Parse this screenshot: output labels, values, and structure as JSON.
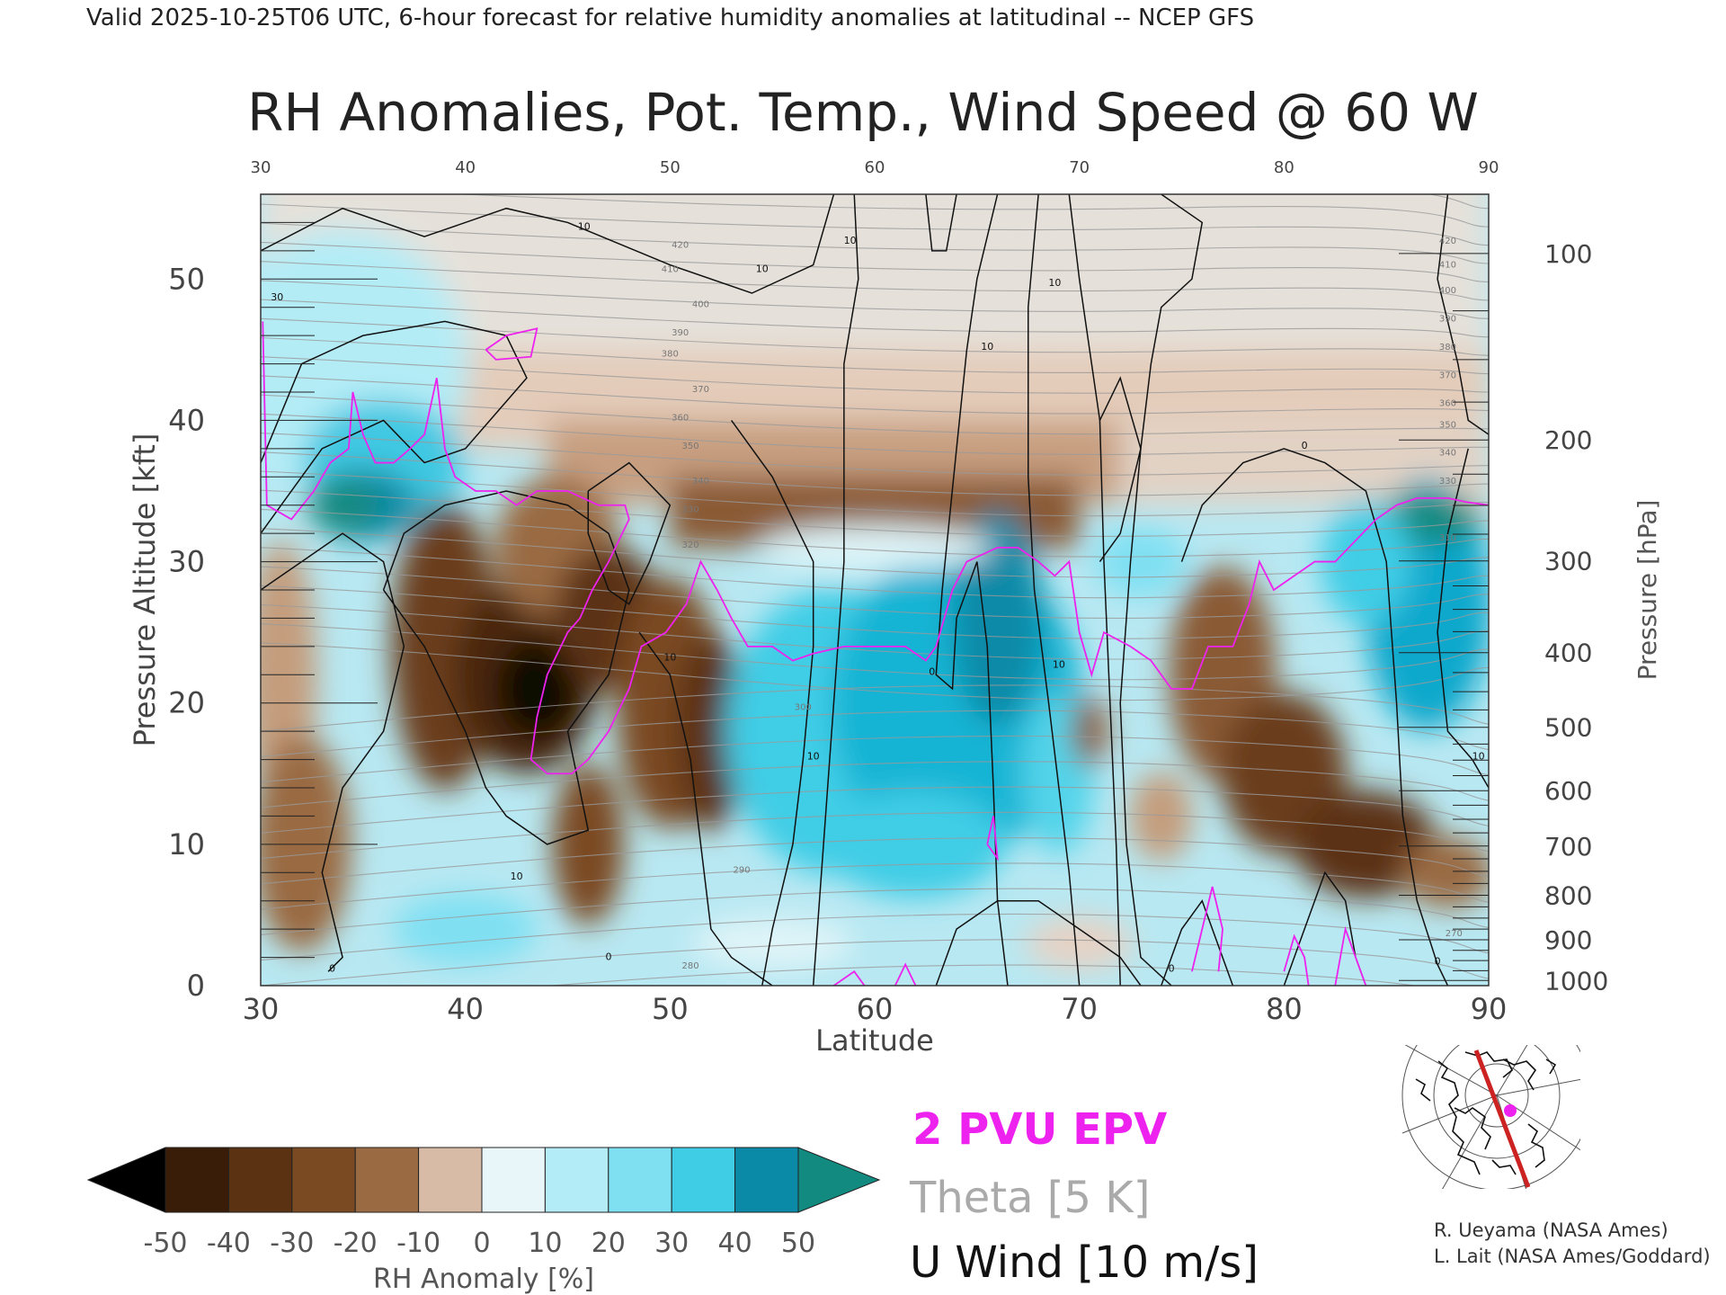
{
  "header": "Valid 2025-10-25T06 UTC, 6-hour forecast for relative humidity anomalies at latitudinal -- NCEP GFS",
  "credits": [
    "R. Ueyama (NASA Ames)",
    "L. Lait (NASA Ames/Goddard)"
  ],
  "legend": {
    "epv": {
      "label": "2 PVU EPV",
      "color": "#ee22ee"
    },
    "theta": {
      "label": "Theta [5 K]",
      "color": "#a8a8a8"
    },
    "wind": {
      "label": "U Wind [10 m/s]",
      "color": "#111111"
    }
  },
  "colorbar": {
    "label": "RH Anomaly [%]",
    "ticks": [
      "-50",
      "-40",
      "-30",
      "-20",
      "-10",
      "0",
      "10",
      "20",
      "30",
      "40",
      "50"
    ],
    "colors": [
      "#000000",
      "#3a1d08",
      "#5c3312",
      "#7a4a22",
      "#9a6a43",
      "#b88e6e",
      "#e6d2c4",
      "#dff4f8",
      "#b3ecf7",
      "#7fe0f2",
      "#3fcde6",
      "#0fb3d3",
      "#0a8aa7",
      "#138a80"
    ]
  },
  "chart_data": {
    "type": "heatmap",
    "title": "RH Anomalies, Pot. Temp., Wind Speed @ 60 W",
    "xlabel": "Latitude",
    "ylabel": "Pressure Altitude [kft]",
    "y2label": "Pressure [hPa]",
    "xlim": [
      30,
      90
    ],
    "ylim": [
      0,
      56
    ],
    "x_ticks": [
      30,
      40,
      50,
      60,
      70,
      80,
      90
    ],
    "y_ticks": [
      0,
      10,
      20,
      30,
      40,
      50
    ],
    "pressure_ticks": [
      100,
      200,
      300,
      400,
      500,
      600,
      700,
      800,
      900,
      1000
    ],
    "theta_labels": [
      {
        "lat": 50.5,
        "alt": 52.2,
        "text": "420"
      },
      {
        "lat": 50.0,
        "alt": 50.5,
        "text": "410"
      },
      {
        "lat": 51.5,
        "alt": 48.0,
        "text": "400"
      },
      {
        "lat": 50.5,
        "alt": 46.0,
        "text": "390"
      },
      {
        "lat": 50.0,
        "alt": 44.5,
        "text": "380"
      },
      {
        "lat": 51.5,
        "alt": 42.0,
        "text": "370"
      },
      {
        "lat": 50.5,
        "alt": 40.0,
        "text": "360"
      },
      {
        "lat": 51.0,
        "alt": 38.0,
        "text": "350"
      },
      {
        "lat": 51.5,
        "alt": 35.5,
        "text": "340"
      },
      {
        "lat": 51.0,
        "alt": 33.5,
        "text": "330"
      },
      {
        "lat": 51.0,
        "alt": 31.0,
        "text": "320"
      },
      {
        "lat": 56.5,
        "alt": 19.5,
        "text": "300"
      },
      {
        "lat": 53.5,
        "alt": 8.0,
        "text": "290"
      },
      {
        "lat": 51.0,
        "alt": 1.2,
        "text": "280"
      },
      {
        "lat": 88.0,
        "alt": 52.5,
        "text": "420"
      },
      {
        "lat": 88.0,
        "alt": 50.8,
        "text": "410"
      },
      {
        "lat": 88.0,
        "alt": 49.0,
        "text": "400"
      },
      {
        "lat": 88.0,
        "alt": 47.0,
        "text": "390"
      },
      {
        "lat": 88.0,
        "alt": 45.0,
        "text": "380"
      },
      {
        "lat": 88.0,
        "alt": 43.0,
        "text": "370"
      },
      {
        "lat": 88.0,
        "alt": 41.0,
        "text": "360"
      },
      {
        "lat": 88.0,
        "alt": 39.5,
        "text": "350"
      },
      {
        "lat": 88.0,
        "alt": 37.5,
        "text": "340"
      },
      {
        "lat": 88.0,
        "alt": 35.5,
        "text": "330"
      },
      {
        "lat": 88.0,
        "alt": 31.5,
        "text": "310"
      },
      {
        "lat": 88.3,
        "alt": 3.5,
        "text": "270"
      }
    ],
    "wind_labels": [
      {
        "lat": 30.8,
        "alt": 48.5,
        "text": "30"
      },
      {
        "lat": 45.8,
        "alt": 53.5,
        "text": "10"
      },
      {
        "lat": 54.5,
        "alt": 50.5,
        "text": "10"
      },
      {
        "lat": 58.8,
        "alt": 52.5,
        "text": "10"
      },
      {
        "lat": 68.8,
        "alt": 49.5,
        "text": "10"
      },
      {
        "lat": 65.5,
        "alt": 45.0,
        "text": "10"
      },
      {
        "lat": 50.0,
        "alt": 23.0,
        "text": "10"
      },
      {
        "lat": 57.0,
        "alt": 16.0,
        "text": "10"
      },
      {
        "lat": 69.0,
        "alt": 22.5,
        "text": "10"
      },
      {
        "lat": 42.5,
        "alt": 7.5,
        "text": "10"
      },
      {
        "lat": 33.5,
        "alt": 1.0,
        "text": "0"
      },
      {
        "lat": 47.0,
        "alt": 1.8,
        "text": "0"
      },
      {
        "lat": 62.8,
        "alt": 22.0,
        "text": "0"
      },
      {
        "lat": 81.0,
        "alt": 38.0,
        "text": "0"
      },
      {
        "lat": 74.5,
        "alt": 1.0,
        "text": "0"
      },
      {
        "lat": 87.5,
        "alt": 1.5,
        "text": "0"
      },
      {
        "lat": 89.5,
        "alt": 16.0,
        "text": "10"
      }
    ],
    "epv_2pvu": [
      [
        30.1,
        47
      ],
      [
        30.3,
        34
      ],
      [
        31.5,
        33
      ],
      [
        32.6,
        35
      ],
      [
        33.4,
        37
      ],
      [
        34.3,
        38
      ],
      [
        34.5,
        42
      ],
      [
        35.0,
        39
      ],
      [
        35.6,
        37
      ],
      [
        36.5,
        37
      ],
      [
        37.3,
        38
      ],
      [
        38.0,
        39
      ],
      [
        38.6,
        43
      ],
      [
        39.0,
        38
      ],
      [
        39.5,
        36
      ],
      [
        40.5,
        35
      ],
      [
        41.5,
        35
      ],
      [
        42.5,
        34
      ],
      [
        43.5,
        35
      ],
      [
        45.0,
        35
      ],
      [
        46.5,
        34
      ],
      [
        47.8,
        34
      ],
      [
        48.0,
        33
      ],
      [
        47.0,
        30
      ],
      [
        46.2,
        28
      ],
      [
        45.6,
        26
      ],
      [
        45.0,
        25
      ],
      [
        44.0,
        22
      ],
      [
        43.5,
        19
      ],
      [
        43.2,
        16
      ],
      [
        44.0,
        15
      ],
      [
        45.2,
        15
      ],
      [
        46.0,
        16
      ],
      [
        47.0,
        18
      ],
      [
        48.0,
        21
      ],
      [
        48.6,
        24
      ],
      [
        49.8,
        25
      ],
      [
        50.8,
        27
      ],
      [
        51.5,
        30
      ],
      [
        52.3,
        28
      ],
      [
        53.0,
        26
      ],
      [
        53.8,
        24
      ],
      [
        55.0,
        24
      ],
      [
        56.0,
        23
      ],
      [
        57.0,
        23.5
      ],
      [
        58.5,
        24
      ],
      [
        60.0,
        24
      ],
      [
        61.5,
        24
      ],
      [
        62.5,
        23
      ],
      [
        63.0,
        24
      ],
      [
        63.8,
        28
      ],
      [
        64.5,
        30
      ],
      [
        66.0,
        31
      ],
      [
        67.0,
        31
      ],
      [
        68.0,
        30
      ],
      [
        68.8,
        29
      ],
      [
        69.5,
        30
      ],
      [
        70.0,
        25
      ],
      [
        70.6,
        22
      ],
      [
        71.2,
        25
      ],
      [
        72.5,
        24
      ],
      [
        73.5,
        23
      ],
      [
        74.5,
        21
      ],
      [
        75.5,
        21
      ],
      [
        76.3,
        24
      ],
      [
        77.5,
        24
      ],
      [
        78.3,
        27
      ],
      [
        78.8,
        30
      ],
      [
        79.5,
        28
      ],
      [
        80.5,
        29
      ],
      [
        81.5,
        30
      ],
      [
        82.5,
        30
      ],
      [
        83.5,
        31.5
      ],
      [
        84.5,
        33
      ],
      [
        85.5,
        34
      ],
      [
        86.5,
        34.5
      ],
      [
        88.0,
        34.5
      ],
      [
        89.0,
        34.2
      ],
      [
        90.0,
        34
      ]
    ]
  },
  "inset_map": {
    "marker_color": "#ee22ee",
    "line_color": "#cc2222"
  }
}
